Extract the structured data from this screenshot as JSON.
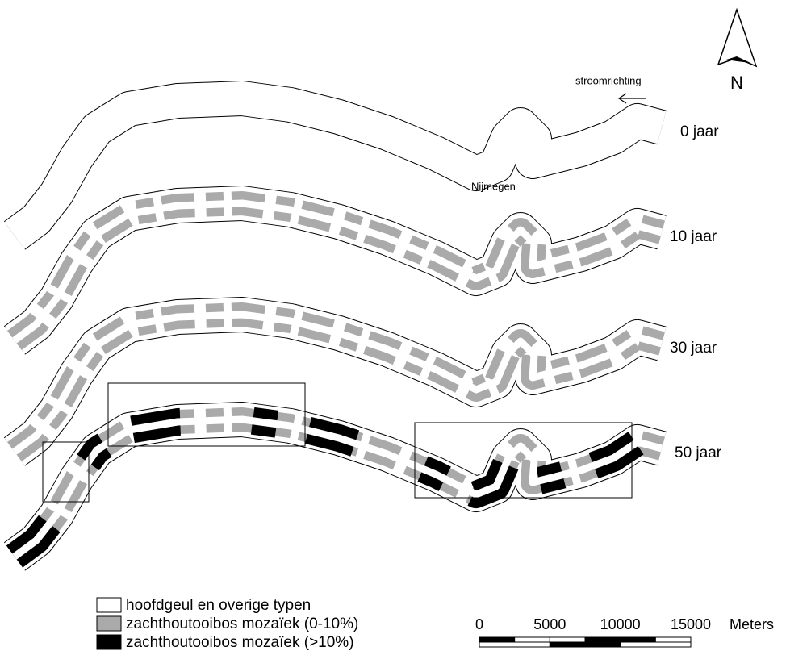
{
  "map": {
    "flow_label": "stroomrichting",
    "north_label": "N",
    "city_label": "Nijmegen",
    "panels": [
      "0 jaar",
      "10 jaar",
      "30 jaar",
      "50 jaar"
    ],
    "legend": [
      "hoofdgeul en overige typen",
      "zachthoutooibos mozaïek (0-10%)",
      "zachthoutooibos mozaïek (>10%)"
    ],
    "scale_bar": {
      "ticks": [
        0,
        5000,
        10000,
        15000
      ],
      "unit": "Meters"
    }
  }
}
